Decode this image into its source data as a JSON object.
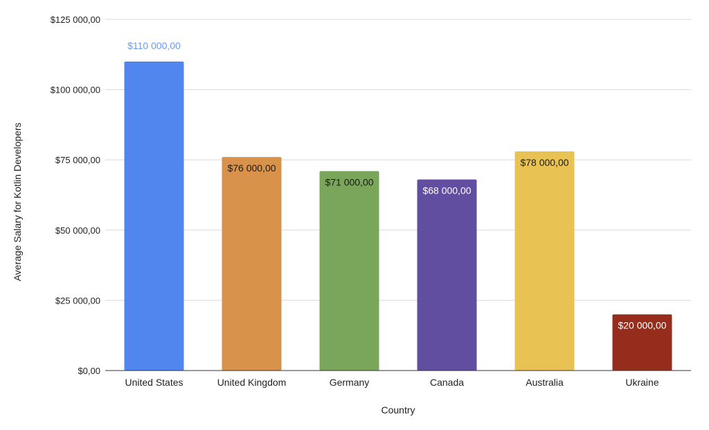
{
  "chart_data": {
    "type": "bar",
    "title": "",
    "xlabel": "Country",
    "ylabel": "Average Salary for Kotlin Developers",
    "ylim": [
      0,
      125000
    ],
    "yticks": [
      0,
      25000,
      50000,
      75000,
      100000,
      125000
    ],
    "ytick_labels": [
      "$0,00",
      "$25 000,00",
      "$50 000,00",
      "$75 000,00",
      "$100 000,00",
      "$125 000,00"
    ],
    "grid": true,
    "legend": "none",
    "categories": [
      "United States",
      "United Kingdom",
      "Germany",
      "Canada",
      "Australia",
      "Ukraine"
    ],
    "values": [
      110000,
      76000,
      71000,
      68000,
      78000,
      20000
    ],
    "data_labels": [
      "$110 000,00",
      "$76 000,00",
      "$71 000,00",
      "$68 000,00",
      "$78 000,00",
      "$20 000,00"
    ],
    "colors": [
      "#5086EE",
      "#D9924A",
      "#79A65A",
      "#624EA0",
      "#E8C252",
      "#962D1C"
    ],
    "label_colors": [
      "#6D9AEF",
      "#1A1A1A",
      "#1A1A1A",
      "#FFFFFF",
      "#1A1A1A",
      "#FFFFFF"
    ],
    "label_placement": [
      "above",
      "inside",
      "inside",
      "inside",
      "inside",
      "inside"
    ]
  }
}
